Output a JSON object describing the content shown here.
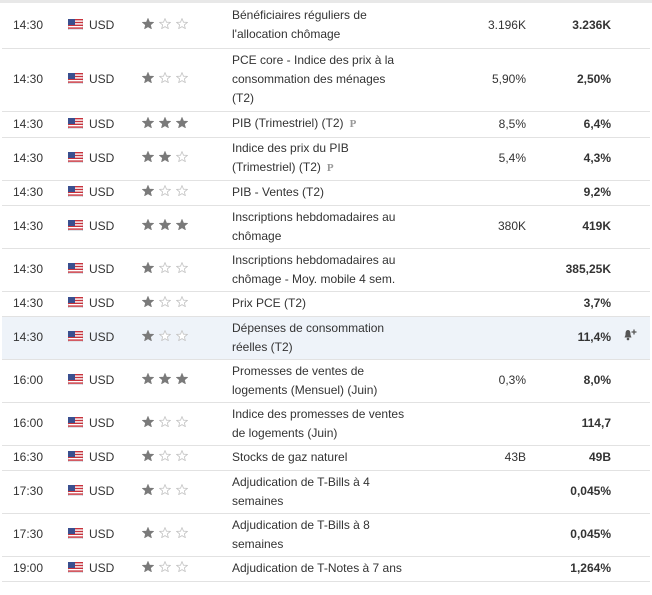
{
  "colors": {
    "star_on": "#777777",
    "star_off": "#cccccc",
    "row_border": "#e2e2e2",
    "highlight_row": "#eef3f9"
  },
  "rows": [
    {
      "time": "14:30",
      "flag": "us-flag-icon",
      "currency": "USD",
      "stars": 1,
      "event": "Bénéficiaires réguliers de l'allocation chômage",
      "prelim": "",
      "actual": "",
      "forecast": "3.196K",
      "previous": "3.236K",
      "alert": "",
      "highlight": false,
      "h": 45
    },
    {
      "time": "14:30",
      "flag": "us-flag-icon",
      "currency": "USD",
      "stars": 1,
      "event": "PCE core - Indice des prix à la consommation des ménages (T2)",
      "prelim": "",
      "actual": "",
      "forecast": "5,90%",
      "previous": "2,50%",
      "alert": "",
      "highlight": false,
      "h": 63
    },
    {
      "time": "14:30",
      "flag": "us-flag-icon",
      "currency": "USD",
      "stars": 3,
      "event": "PIB (Trimestriel) (T2)",
      "prelim": "P",
      "actual": "",
      "forecast": "8,5%",
      "previous": "6,4%",
      "alert": "",
      "highlight": false,
      "h": 26
    },
    {
      "time": "14:30",
      "flag": "us-flag-icon",
      "currency": "USD",
      "stars": 2,
      "event": "Indice des prix du PIB (Trimestriel) (T2)",
      "prelim": "P",
      "actual": "",
      "forecast": "5,4%",
      "previous": "4,3%",
      "alert": "",
      "highlight": false,
      "h": 43
    },
    {
      "time": "14:30",
      "flag": "us-flag-icon",
      "currency": "USD",
      "stars": 1,
      "event": "PIB - Ventes (T2)",
      "prelim": "",
      "actual": "",
      "forecast": "",
      "previous": "9,2%",
      "alert": "",
      "highlight": false,
      "h": 25
    },
    {
      "time": "14:30",
      "flag": "us-flag-icon",
      "currency": "USD",
      "stars": 3,
      "event": "Inscriptions hebdomadaires au chômage",
      "prelim": "",
      "actual": "",
      "forecast": "380K",
      "previous": "419K",
      "alert": "",
      "highlight": false,
      "h": 43
    },
    {
      "time": "14:30",
      "flag": "us-flag-icon",
      "currency": "USD",
      "stars": 1,
      "event": "Inscriptions hebdomadaires au chômage - Moy. mobile 4 sem.",
      "prelim": "",
      "actual": "",
      "forecast": "",
      "previous": "385,25K",
      "alert": "",
      "highlight": false,
      "h": 43
    },
    {
      "time": "14:30",
      "flag": "us-flag-icon",
      "currency": "USD",
      "stars": 1,
      "event": "Prix PCE (T2)",
      "prelim": "",
      "actual": "",
      "forecast": "",
      "previous": "3,7%",
      "alert": "",
      "highlight": false,
      "h": 25
    },
    {
      "time": "14:30",
      "flag": "us-flag-icon",
      "currency": "USD",
      "stars": 1,
      "event": "Dépenses de consommation réelles (T2)",
      "prelim": "",
      "actual": "",
      "forecast": "",
      "previous": "11,4%",
      "alert": "bell-plus-icon",
      "highlight": true,
      "h": 43
    },
    {
      "time": "16:00",
      "flag": "us-flag-icon",
      "currency": "USD",
      "stars": 3,
      "event": "Promesses de ventes de logements (Mensuel) (Juin)",
      "prelim": "",
      "actual": "",
      "forecast": "0,3%",
      "previous": "8,0%",
      "alert": "",
      "highlight": false,
      "h": 43
    },
    {
      "time": "16:00",
      "flag": "us-flag-icon",
      "currency": "USD",
      "stars": 1,
      "event": "Indice des promesses de ventes de logements (Juin)",
      "prelim": "",
      "actual": "",
      "forecast": "",
      "previous": "114,7",
      "alert": "",
      "highlight": false,
      "h": 43
    },
    {
      "time": "16:30",
      "flag": "us-flag-icon",
      "currency": "USD",
      "stars": 1,
      "event": "Stocks de gaz naturel",
      "prelim": "",
      "actual": "",
      "forecast": "43B",
      "previous": "49B",
      "alert": "",
      "highlight": false,
      "h": 25
    },
    {
      "time": "17:30",
      "flag": "us-flag-icon",
      "currency": "USD",
      "stars": 1,
      "event": "Adjudication de T-Bills à 4 semaines",
      "prelim": "",
      "actual": "",
      "forecast": "",
      "previous": "0,045%",
      "alert": "",
      "highlight": false,
      "h": 43
    },
    {
      "time": "17:30",
      "flag": "us-flag-icon",
      "currency": "USD",
      "stars": 1,
      "event": "Adjudication de T-Bills à 8 semaines",
      "prelim": "",
      "actual": "",
      "forecast": "",
      "previous": "0,045%",
      "alert": "",
      "highlight": false,
      "h": 43
    },
    {
      "time": "19:00",
      "flag": "us-flag-icon",
      "currency": "USD",
      "stars": 1,
      "event": "Adjudication de T-Notes à 7 ans",
      "prelim": "",
      "actual": "",
      "forecast": "",
      "previous": "1,264%",
      "alert": "",
      "highlight": false,
      "h": 25
    }
  ]
}
